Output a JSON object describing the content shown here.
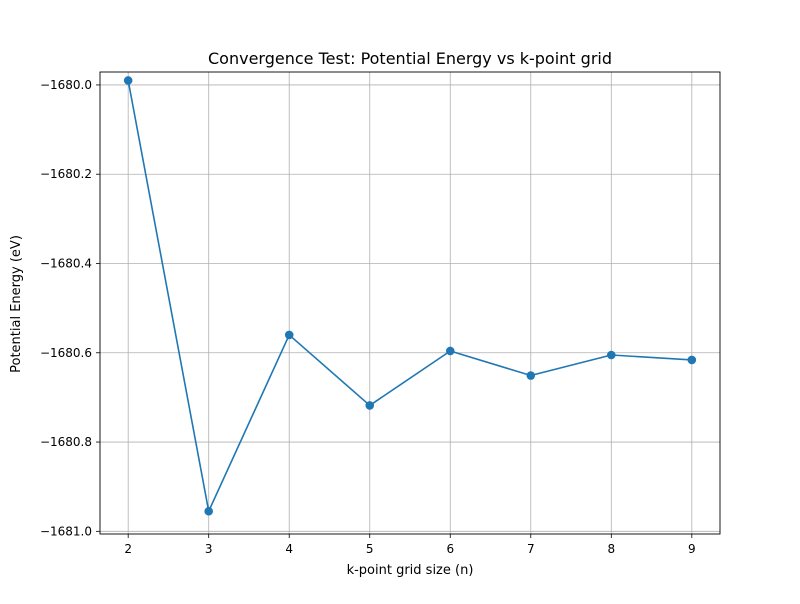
{
  "chart_data": {
    "type": "line",
    "title": "Convergence Test: Potential Energy vs k-point grid",
    "xlabel": "k-point grid size (n)",
    "ylabel": "Potential Energy (eV)",
    "x": [
      2,
      3,
      4,
      5,
      6,
      7,
      8,
      9
    ],
    "xticks": [
      "2",
      "3",
      "4",
      "5",
      "6",
      "7",
      "8",
      "9"
    ],
    "yticks": [
      -1681.0,
      -1680.8,
      -1680.6,
      -1680.4,
      -1680.2,
      -1680.0
    ],
    "ytick_labels": [
      "−1681.0",
      "−1680.8",
      "−1680.6",
      "−1680.4",
      "−1680.2",
      "−1680.0"
    ],
    "xlim": [
      1.65,
      9.35
    ],
    "ylim": [
      -1681.006,
      -1679.971
    ],
    "grid": true,
    "legend": "none",
    "series": [
      {
        "values": [
          -1679.99,
          -1680.955,
          -1680.56,
          -1680.718,
          -1680.596,
          -1680.651,
          -1680.605,
          -1680.616
        ],
        "color": "#1f77b4",
        "marker": "circle"
      }
    ]
  }
}
